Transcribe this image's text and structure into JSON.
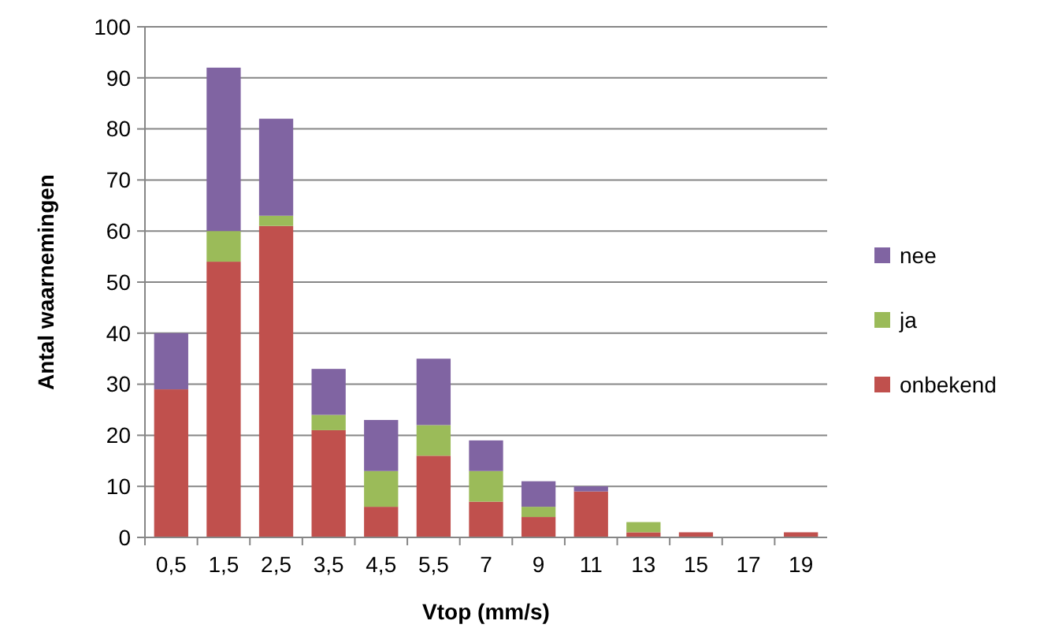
{
  "chart_data": {
    "type": "bar",
    "stacked": true,
    "xlabel": "Vtop (mm/s)",
    "ylabel": "Antal waarnemingen",
    "categories": [
      "0,5",
      "1,5",
      "2,5",
      "3,5",
      "4,5",
      "5,5",
      "7",
      "9",
      "11",
      "13",
      "15",
      "17",
      "19"
    ],
    "series": [
      {
        "name": "onbekend",
        "color": "#c0504d",
        "values": [
          29,
          54,
          61,
          21,
          6,
          16,
          7,
          4,
          9,
          1,
          1,
          0,
          1
        ]
      },
      {
        "name": "ja",
        "color": "#9bbb59",
        "values": [
          0,
          6,
          2,
          3,
          7,
          6,
          6,
          2,
          0,
          2,
          0,
          0,
          0
        ]
      },
      {
        "name": "nee",
        "color": "#8064a2",
        "values": [
          11,
          32,
          19,
          9,
          10,
          13,
          6,
          5,
          1,
          0,
          0,
          0,
          0
        ]
      }
    ],
    "ylim": [
      0,
      100
    ],
    "yticks": [
      0,
      10,
      20,
      30,
      40,
      50,
      60,
      70,
      80,
      90,
      100
    ],
    "grid": "y",
    "legend": "right"
  }
}
